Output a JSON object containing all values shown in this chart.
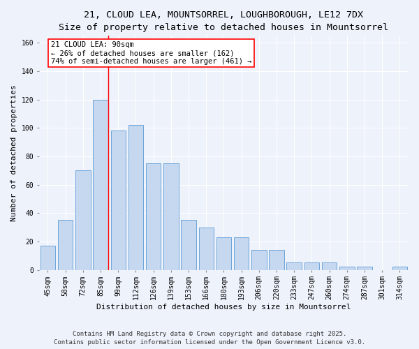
{
  "title_line1": "21, CLOUD LEA, MOUNTSORREL, LOUGHBOROUGH, LE12 7DX",
  "title_line2": "Size of property relative to detached houses in Mountsorrel",
  "xlabel": "Distribution of detached houses by size in Mountsorrel",
  "ylabel": "Number of detached properties",
  "categories": [
    "45sqm",
    "58sqm",
    "72sqm",
    "85sqm",
    "99sqm",
    "112sqm",
    "126sqm",
    "139sqm",
    "153sqm",
    "166sqm",
    "180sqm",
    "193sqm",
    "206sqm",
    "220sqm",
    "233sqm",
    "247sqm",
    "260sqm",
    "274sqm",
    "287sqm",
    "301sqm",
    "314sqm"
  ],
  "values": [
    17,
    35,
    70,
    120,
    98,
    102,
    75,
    75,
    35,
    30,
    23,
    23,
    14,
    14,
    5,
    5,
    5,
    2,
    2,
    0,
    2
  ],
  "bar_color": "#c5d8f0",
  "bar_edge_color": "#5b9bd5",
  "red_line_index": 3,
  "annotation_text": "21 CLOUD LEA: 90sqm\n← 26% of detached houses are smaller (162)\n74% of semi-detached houses are larger (461) →",
  "annotation_box_color": "white",
  "annotation_box_edge_color": "red",
  "ylim": [
    0,
    165
  ],
  "yticks": [
    0,
    20,
    40,
    60,
    80,
    100,
    120,
    140,
    160
  ],
  "footer_line1": "Contains HM Land Registry data © Crown copyright and database right 2025.",
  "footer_line2": "Contains public sector information licensed under the Open Government Licence v3.0.",
  "background_color": "#eef2fb",
  "grid_color": "white",
  "title_fontsize": 9.5,
  "subtitle_fontsize": 8.5,
  "axis_label_fontsize": 8,
  "tick_fontsize": 7,
  "annotation_fontsize": 7.5,
  "footer_fontsize": 6.5
}
